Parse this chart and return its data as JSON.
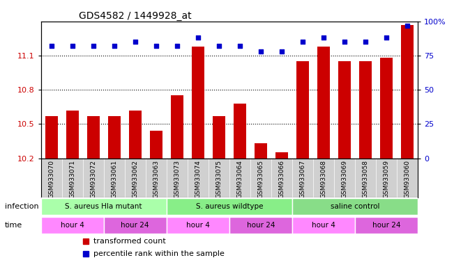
{
  "title": "GDS4582 / 1449928_at",
  "samples": [
    "GSM933070",
    "GSM933071",
    "GSM933072",
    "GSM933061",
    "GSM933062",
    "GSM933063",
    "GSM933073",
    "GSM933074",
    "GSM933075",
    "GSM933064",
    "GSM933065",
    "GSM933066",
    "GSM933067",
    "GSM933068",
    "GSM933069",
    "GSM933058",
    "GSM933059",
    "GSM933060"
  ],
  "bar_values": [
    10.57,
    10.62,
    10.57,
    10.57,
    10.62,
    10.44,
    10.75,
    11.18,
    10.57,
    10.68,
    10.33,
    10.25,
    11.05,
    11.18,
    11.05,
    11.05,
    11.08,
    11.37
  ],
  "dot_values": [
    82,
    82,
    82,
    82,
    85,
    82,
    82,
    88,
    82,
    82,
    78,
    78,
    85,
    88,
    85,
    85,
    88,
    97
  ],
  "ylim_left": [
    10.2,
    11.4
  ],
  "ylim_right": [
    0,
    100
  ],
  "yticks_left": [
    10.2,
    10.5,
    10.8,
    11.1
  ],
  "yticks_right": [
    0,
    25,
    50,
    75,
    100
  ],
  "bar_color": "#cc0000",
  "dot_color": "#0000cc",
  "groups": [
    {
      "label": "S. aureus Hla mutant",
      "start": 0,
      "end": 6,
      "color": "#aaffaa"
    },
    {
      "label": "S. aureus wildtype",
      "start": 6,
      "end": 12,
      "color": "#88ee88"
    },
    {
      "label": "saline control",
      "start": 12,
      "end": 18,
      "color": "#88dd88"
    }
  ],
  "time_groups": [
    {
      "label": "hour 4",
      "start": 0,
      "end": 3,
      "color": "#ff88ff"
    },
    {
      "label": "hour 24",
      "start": 3,
      "end": 6,
      "color": "#dd66dd"
    },
    {
      "label": "hour 4",
      "start": 6,
      "end": 9,
      "color": "#ff88ff"
    },
    {
      "label": "hour 24",
      "start": 9,
      "end": 12,
      "color": "#dd66dd"
    },
    {
      "label": "hour 4",
      "start": 12,
      "end": 15,
      "color": "#ff88ff"
    },
    {
      "label": "hour 24",
      "start": 15,
      "end": 18,
      "color": "#dd66dd"
    }
  ],
  "infection_label": "infection",
  "time_label": "time",
  "legend_bar_label": "transformed count",
  "legend_dot_label": "percentile rank within the sample",
  "grid_color": "#000000",
  "bg_color": "#ffffff",
  "plot_bg_color": "#ffffff",
  "tick_label_color_left": "#cc0000",
  "tick_label_color_right": "#0000cc",
  "bar_width": 0.6
}
